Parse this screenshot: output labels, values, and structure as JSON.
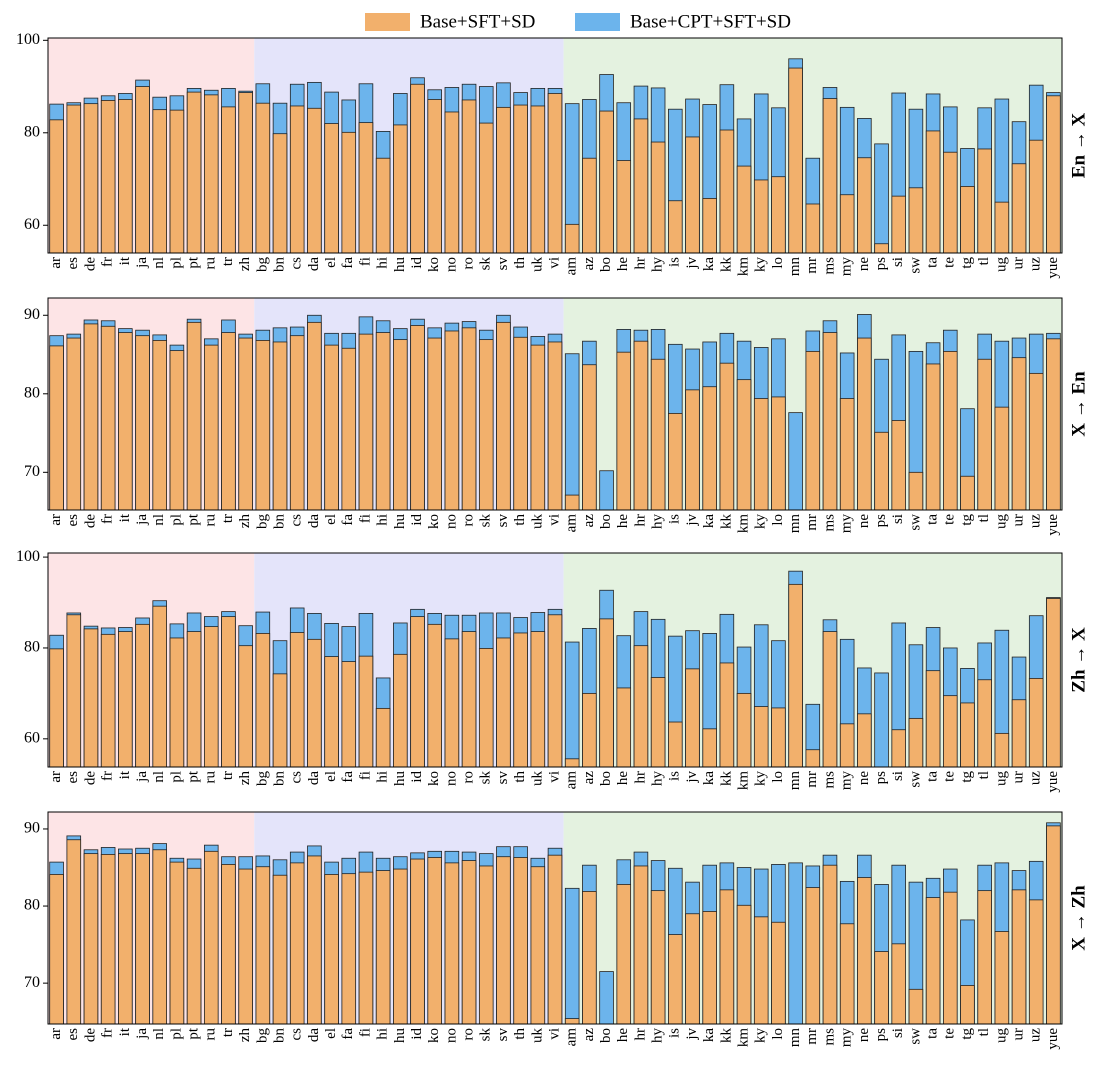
{
  "chart_data": [
    {
      "type": "bar",
      "title": "En → X",
      "ylim": [
        54,
        100.5
      ],
      "yticks": [
        60,
        80,
        100
      ],
      "categories": [
        "ar",
        "es",
        "de",
        "fr",
        "it",
        "ja",
        "nl",
        "pl",
        "pt",
        "ru",
        "tr",
        "zh",
        "bg",
        "bn",
        "cs",
        "da",
        "el",
        "fa",
        "fi",
        "hi",
        "hu",
        "id",
        "ko",
        "no",
        "ro",
        "sk",
        "sv",
        "th",
        "uk",
        "vi",
        "am",
        "az",
        "bo",
        "he",
        "hr",
        "hy",
        "is",
        "jv",
        "ka",
        "kk",
        "km",
        "ky",
        "lo",
        "mn",
        "mr",
        "ms",
        "my",
        "ne",
        "ps",
        "si",
        "sw",
        "ta",
        "te",
        "tg",
        "tl",
        "ug",
        "ur",
        "uz",
        "yue"
      ],
      "series": [
        {
          "name": "Base+CPT+SFT+SD",
          "color": "#6cb4ec",
          "values": [
            86.2,
            86.5,
            87.5,
            88.0,
            88.5,
            91.4,
            87.7,
            88.0,
            89.6,
            89.2,
            89.6,
            89.0,
            90.6,
            86.4,
            90.5,
            90.9,
            88.8,
            87.1,
            90.6,
            80.3,
            88.5,
            91.9,
            89.3,
            89.8,
            90.5,
            90.0,
            90.8,
            88.7,
            89.6,
            89.6,
            86.3,
            87.2,
            92.6,
            86.5,
            90.1,
            89.7,
            85.1,
            87.3,
            86.1,
            90.4,
            83.0,
            88.4,
            85.4,
            96.0,
            74.5,
            89.8,
            85.5,
            83.1,
            77.6,
            88.6,
            85.1,
            88.4,
            85.6,
            76.6,
            85.4,
            87.3,
            82.4,
            90.3,
            88.7
          ]
        },
        {
          "name": "Base+SFT+SD",
          "color": "#f2b06c",
          "values": [
            82.8,
            86.0,
            86.3,
            87.0,
            87.2,
            90.0,
            85.0,
            84.9,
            88.8,
            88.2,
            85.6,
            88.7,
            86.4,
            79.8,
            85.8,
            85.3,
            82.0,
            80.1,
            82.2,
            74.5,
            81.7,
            90.5,
            87.2,
            84.5,
            87.1,
            82.1,
            85.5,
            86.0,
            85.8,
            88.5,
            60.2,
            74.5,
            84.7,
            74.0,
            83.0,
            78.0,
            65.3,
            79.1,
            65.8,
            80.6,
            72.8,
            69.8,
            70.5,
            94.0,
            64.6,
            87.4,
            66.6,
            74.6,
            56.0,
            66.3,
            68.1,
            80.4,
            75.8,
            68.4,
            76.5,
            65.0,
            73.3,
            78.4,
            88.0
          ]
        }
      ]
    },
    {
      "type": "bar",
      "title": "X → En",
      "ylim": [
        65.2,
        92.2
      ],
      "yticks": [
        70,
        80,
        90
      ],
      "categories": [
        "ar",
        "es",
        "de",
        "fr",
        "it",
        "ja",
        "nl",
        "pl",
        "pt",
        "ru",
        "tr",
        "zh",
        "bg",
        "bn",
        "cs",
        "da",
        "el",
        "fa",
        "fi",
        "hi",
        "hu",
        "id",
        "ko",
        "no",
        "ro",
        "sk",
        "sv",
        "th",
        "uk",
        "vi",
        "am",
        "az",
        "bo",
        "he",
        "hr",
        "hy",
        "is",
        "jv",
        "ka",
        "kk",
        "km",
        "ky",
        "lo",
        "mn",
        "mr",
        "ms",
        "my",
        "ne",
        "ps",
        "si",
        "sw",
        "ta",
        "te",
        "tg",
        "tl",
        "ug",
        "ur",
        "uz",
        "yue"
      ],
      "series": [
        {
          "color": "#6cb4ec",
          "values": [
            87.4,
            87.6,
            89.4,
            89.3,
            88.3,
            88.1,
            87.5,
            86.2,
            89.5,
            87.0,
            89.4,
            87.6,
            88.1,
            88.4,
            88.5,
            90.0,
            87.7,
            87.7,
            89.8,
            89.3,
            88.3,
            89.5,
            88.4,
            89.0,
            89.2,
            88.1,
            90.0,
            88.5,
            87.3,
            87.6,
            85.1,
            86.7,
            70.2,
            88.2,
            88.1,
            88.2,
            86.3,
            85.7,
            86.6,
            87.7,
            86.7,
            85.9,
            87.0,
            77.6,
            88.0,
            89.3,
            85.2,
            90.1,
            84.4,
            87.5,
            85.4,
            86.5,
            88.1,
            78.1,
            87.6,
            86.7,
            87.1,
            87.6,
            87.7
          ]
        },
        {
          "color": "#f2b06c",
          "values": [
            86.1,
            87.1,
            88.9,
            88.6,
            87.8,
            87.4,
            86.8,
            85.5,
            89.1,
            86.2,
            87.8,
            87.1,
            86.8,
            86.6,
            87.4,
            89.1,
            86.2,
            85.8,
            87.6,
            87.8,
            86.9,
            88.7,
            87.1,
            88.0,
            88.4,
            86.9,
            89.1,
            87.2,
            86.2,
            86.6,
            67.1,
            83.7,
            null,
            85.3,
            86.7,
            84.4,
            77.5,
            80.5,
            80.9,
            83.9,
            81.8,
            79.4,
            79.6,
            null,
            85.4,
            87.8,
            79.4,
            87.1,
            75.1,
            76.6,
            70.0,
            83.8,
            85.4,
            69.5,
            84.4,
            78.3,
            84.6,
            82.6,
            87.0
          ]
        }
      ]
    },
    {
      "type": "bar",
      "title": "Zh → X",
      "ylim": [
        53.8,
        100.9
      ],
      "yticks": [
        60,
        80,
        100
      ],
      "categories": [
        "ar",
        "es",
        "de",
        "fr",
        "it",
        "ja",
        "nl",
        "pl",
        "pt",
        "ru",
        "tr",
        "zh",
        "bg",
        "bn",
        "cs",
        "da",
        "el",
        "fa",
        "fi",
        "hi",
        "hu",
        "id",
        "ko",
        "no",
        "ro",
        "sk",
        "sv",
        "th",
        "uk",
        "vi",
        "am",
        "az",
        "bo",
        "he",
        "hr",
        "hy",
        "is",
        "jv",
        "ka",
        "kk",
        "km",
        "ky",
        "lo",
        "mn",
        "mr",
        "ms",
        "my",
        "ne",
        "ps",
        "si",
        "sw",
        "ta",
        "te",
        "tg",
        "tl",
        "ug",
        "ur",
        "uz",
        "yue"
      ],
      "series": [
        {
          "color": "#6cb4ec",
          "values": [
            82.8,
            87.7,
            84.8,
            84.4,
            84.5,
            86.6,
            90.4,
            85.3,
            87.7,
            86.9,
            88.0,
            84.9,
            87.9,
            81.6,
            88.8,
            87.6,
            85.4,
            84.7,
            87.6,
            73.4,
            85.5,
            88.5,
            87.6,
            87.2,
            87.2,
            87.7,
            87.7,
            86.7,
            87.8,
            88.5,
            81.3,
            84.3,
            92.7,
            82.7,
            88.0,
            86.3,
            82.6,
            83.8,
            83.2,
            87.4,
            80.2,
            85.1,
            81.6,
            96.9,
            67.6,
            86.2,
            81.9,
            75.6,
            74.5,
            85.5,
            80.7,
            84.5,
            80.0,
            75.5,
            81.1,
            83.9,
            78.0,
            87.1,
            91.1
          ]
        },
        {
          "color": "#f2b06c",
          "values": [
            79.8,
            87.3,
            84.2,
            83.0,
            83.6,
            85.2,
            89.2,
            82.2,
            83.6,
            84.7,
            86.9,
            80.5,
            83.2,
            74.3,
            83.4,
            81.9,
            78.1,
            77.0,
            78.2,
            66.7,
            78.6,
            86.9,
            85.2,
            82.0,
            83.6,
            79.9,
            82.2,
            83.3,
            83.6,
            87.3,
            55.6,
            70.0,
            86.4,
            71.2,
            80.5,
            73.5,
            63.7,
            75.4,
            62.2,
            76.7,
            70.0,
            67.1,
            66.8,
            94.0,
            57.6,
            83.6,
            63.3,
            65.5,
            null,
            62.0,
            64.5,
            75.0,
            69.5,
            67.9,
            73.0,
            61.2,
            68.6,
            73.3,
            90.9
          ]
        }
      ]
    },
    {
      "type": "bar",
      "title": "X → Zh",
      "ylim": [
        64.7,
        92.2
      ],
      "yticks": [
        70,
        80,
        90
      ],
      "categories": [
        "ar",
        "es",
        "de",
        "fr",
        "it",
        "ja",
        "nl",
        "pl",
        "pt",
        "ru",
        "tr",
        "zh",
        "bg",
        "bn",
        "cs",
        "da",
        "el",
        "fa",
        "fi",
        "hi",
        "hu",
        "id",
        "ko",
        "no",
        "ro",
        "sk",
        "sv",
        "th",
        "uk",
        "vi",
        "am",
        "az",
        "bo",
        "he",
        "hr",
        "hy",
        "is",
        "jv",
        "ka",
        "kk",
        "km",
        "ky",
        "lo",
        "mn",
        "mr",
        "ms",
        "my",
        "ne",
        "ps",
        "si",
        "sw",
        "ta",
        "te",
        "tg",
        "tl",
        "ug",
        "ur",
        "uz",
        "yue"
      ],
      "series": [
        {
          "color": "#6cb4ec",
          "values": [
            85.7,
            89.1,
            87.3,
            87.6,
            87.4,
            87.5,
            88.1,
            86.2,
            86.1,
            87.9,
            86.4,
            86.4,
            86.5,
            86.0,
            87.0,
            87.8,
            85.7,
            86.2,
            87.0,
            86.2,
            86.4,
            86.9,
            87.1,
            87.1,
            87.0,
            86.8,
            87.7,
            87.7,
            86.2,
            87.5,
            82.3,
            85.3,
            71.5,
            86.0,
            87.0,
            85.9,
            84.9,
            83.1,
            85.3,
            85.6,
            85.0,
            84.8,
            85.4,
            85.6,
            85.2,
            86.6,
            83.2,
            86.6,
            82.8,
            85.3,
            83.1,
            83.6,
            84.8,
            78.2,
            85.3,
            85.6,
            84.6,
            85.8,
            90.8
          ]
        },
        {
          "color": "#f2b06c",
          "values": [
            84.1,
            88.6,
            86.8,
            86.7,
            86.8,
            86.8,
            87.3,
            85.7,
            84.9,
            87.1,
            85.4,
            84.8,
            85.1,
            84.0,
            85.6,
            86.5,
            84.1,
            84.2,
            84.4,
            84.6,
            84.8,
            86.1,
            86.3,
            85.6,
            85.9,
            85.2,
            86.4,
            86.3,
            85.1,
            86.6,
            65.4,
            81.9,
            null,
            82.8,
            85.2,
            82.0,
            76.3,
            79.0,
            79.3,
            82.1,
            80.1,
            78.6,
            77.9,
            null,
            82.4,
            85.3,
            77.7,
            83.7,
            74.1,
            75.1,
            69.2,
            81.1,
            81.8,
            69.7,
            82.0,
            76.7,
            82.1,
            80.8,
            90.4
          ]
        }
      ]
    }
  ]
}
